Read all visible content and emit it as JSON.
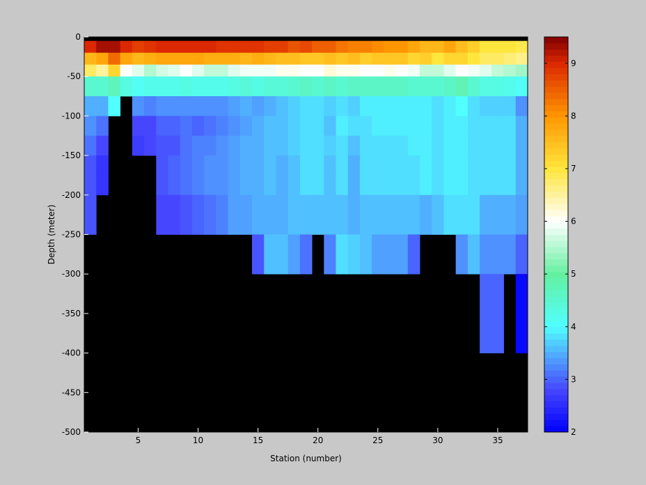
{
  "chart_data": {
    "type": "heatmap",
    "xlabel": "Station (number)",
    "ylabel": "Depth (meter)",
    "xlim": [
      0.5,
      37.5
    ],
    "ylim": [
      -500,
      0
    ],
    "xticks": [
      5,
      10,
      15,
      20,
      25,
      30,
      35
    ],
    "yticks": [
      0,
      -50,
      -100,
      -150,
      -200,
      -250,
      -300,
      -350,
      -400,
      -450,
      -500
    ],
    "colorbar": {
      "range": [
        2,
        9.5
      ],
      "ticks": [
        2,
        3,
        4,
        5,
        6,
        7,
        8,
        9
      ],
      "colormap": "jet-like blue-cyan-green-white-yellow-red"
    },
    "no_data_color": "#000000",
    "depth_bins": [
      [
        0,
        -5
      ],
      [
        -5,
        -20
      ],
      [
        -20,
        -35
      ],
      [
        -35,
        -50
      ],
      [
        -50,
        -75
      ],
      [
        -75,
        -100
      ],
      [
        -100,
        -125
      ],
      [
        -125,
        -150
      ],
      [
        -150,
        -175
      ],
      [
        -175,
        -200
      ],
      [
        -200,
        -250
      ],
      [
        -250,
        -300
      ],
      [
        -300,
        -400
      ]
    ],
    "rows": [
      [
        null,
        null,
        null,
        null,
        null,
        null,
        null,
        null,
        null,
        null,
        null,
        null,
        null,
        null,
        null,
        null,
        null,
        null,
        null,
        null,
        null,
        null,
        null,
        null,
        null,
        null,
        null,
        null,
        null,
        null,
        null,
        null,
        null,
        null,
        null,
        null,
        null
      ],
      [
        9.0,
        9.3,
        9.3,
        9.0,
        8.8,
        8.9,
        9.0,
        9.0,
        9.0,
        9.0,
        9.0,
        8.9,
        8.9,
        8.9,
        8.9,
        8.8,
        8.8,
        8.6,
        8.7,
        8.5,
        8.5,
        8.3,
        8.2,
        8.2,
        8.1,
        8.0,
        8.0,
        7.8,
        7.6,
        7.6,
        7.8,
        7.5,
        7.3,
        7.0,
        7.0,
        7.0,
        6.9
      ],
      [
        7.6,
        7.8,
        8.4,
        7.8,
        7.6,
        7.7,
        7.8,
        7.8,
        7.8,
        7.8,
        7.7,
        7.7,
        7.7,
        7.6,
        7.7,
        7.6,
        7.5,
        7.5,
        7.4,
        7.4,
        7.5,
        7.4,
        7.5,
        7.3,
        7.4,
        7.4,
        7.4,
        7.2,
        7.3,
        7.0,
        7.2,
        7.2,
        7.0,
        6.8,
        6.8,
        6.7,
        6.6
      ],
      [
        6.8,
        6.5,
        7.2,
        6.0,
        5.8,
        5.5,
        5.7,
        5.8,
        6.0,
        5.8,
        5.6,
        5.6,
        5.8,
        5.9,
        5.9,
        5.9,
        6.1,
        6.1,
        6.0,
        6.0,
        6.2,
        6.1,
        6.1,
        6.0,
        6.0,
        6.1,
        6.0,
        5.9,
        5.6,
        5.6,
        5.8,
        6.0,
        5.9,
        5.8,
        5.6,
        5.5,
        5.4
      ],
      [
        4.5,
        4.5,
        4.7,
        4.3,
        4.1,
        4.2,
        4.2,
        4.2,
        4.3,
        4.2,
        4.2,
        4.2,
        4.3,
        4.4,
        4.3,
        4.4,
        4.4,
        4.5,
        4.6,
        4.5,
        4.6,
        4.5,
        4.6,
        4.6,
        4.6,
        4.6,
        4.6,
        4.5,
        4.5,
        4.5,
        4.6,
        4.8,
        4.5,
        4.3,
        4.3,
        4.2,
        4.1
      ],
      [
        3.5,
        3.5,
        4.0,
        null,
        3.3,
        3.2,
        3.3,
        3.3,
        3.3,
        3.3,
        3.3,
        3.3,
        3.4,
        3.5,
        3.4,
        3.5,
        3.6,
        3.7,
        3.8,
        3.8,
        3.7,
        3.8,
        3.7,
        3.9,
        3.9,
        3.9,
        3.9,
        3.9,
        3.9,
        3.8,
        3.9,
        4.0,
        3.8,
        3.7,
        3.7,
        3.7,
        3.3
      ],
      [
        3.3,
        3.1,
        null,
        null,
        2.8,
        2.8,
        3.0,
        3.0,
        3.1,
        3.0,
        3.1,
        3.2,
        3.3,
        3.4,
        3.5,
        3.6,
        3.6,
        3.7,
        3.8,
        3.8,
        3.6,
        3.9,
        3.8,
        3.8,
        3.9,
        3.9,
        3.9,
        3.9,
        3.9,
        3.8,
        3.9,
        3.9,
        3.8,
        3.8,
        3.8,
        3.8,
        3.5
      ],
      [
        3.1,
        2.8,
        null,
        null,
        2.7,
        2.8,
        2.9,
        2.9,
        3.1,
        3.2,
        3.2,
        3.3,
        3.4,
        3.5,
        3.5,
        3.6,
        3.6,
        3.7,
        3.8,
        3.8,
        3.7,
        3.8,
        3.6,
        3.8,
        3.8,
        3.8,
        3.8,
        3.9,
        3.9,
        3.8,
        3.9,
        3.9,
        3.8,
        3.8,
        3.8,
        3.8,
        3.5
      ],
      [
        2.9,
        2.6,
        null,
        null,
        null,
        null,
        2.9,
        3.0,
        3.1,
        3.2,
        3.3,
        3.3,
        3.4,
        3.5,
        3.5,
        3.6,
        3.5,
        3.6,
        3.8,
        3.8,
        3.6,
        3.8,
        3.5,
        3.8,
        3.8,
        3.8,
        3.8,
        3.8,
        3.9,
        3.8,
        3.9,
        3.9,
        3.8,
        3.8,
        3.8,
        3.8,
        3.5
      ],
      [
        2.9,
        2.6,
        null,
        null,
        null,
        null,
        2.9,
        3.0,
        3.1,
        3.2,
        3.3,
        3.3,
        3.4,
        3.5,
        3.5,
        3.6,
        3.5,
        3.6,
        3.8,
        3.8,
        3.6,
        3.8,
        3.5,
        3.8,
        3.8,
        3.8,
        3.8,
        3.8,
        3.9,
        3.8,
        3.9,
        3.9,
        3.8,
        3.8,
        3.8,
        3.8,
        3.5
      ],
      [
        2.9,
        null,
        null,
        null,
        null,
        null,
        2.8,
        2.8,
        2.9,
        3.0,
        3.1,
        3.2,
        3.4,
        3.4,
        3.5,
        3.5,
        3.5,
        3.6,
        3.6,
        3.6,
        3.6,
        3.6,
        3.5,
        3.6,
        3.6,
        3.6,
        3.6,
        3.6,
        3.5,
        3.6,
        3.8,
        3.8,
        3.8,
        3.5,
        3.5,
        3.5,
        3.4
      ],
      [
        null,
        null,
        null,
        null,
        null,
        null,
        null,
        null,
        null,
        null,
        null,
        null,
        null,
        null,
        2.9,
        3.6,
        3.6,
        3.4,
        3.1,
        null,
        3.2,
        3.8,
        3.7,
        3.6,
        3.4,
        3.4,
        3.4,
        3.0,
        null,
        null,
        null,
        3.3,
        3.6,
        3.3,
        3.3,
        3.3,
        3.0
      ],
      [
        null,
        null,
        null,
        null,
        null,
        null,
        null,
        null,
        null,
        null,
        null,
        null,
        null,
        null,
        null,
        null,
        null,
        null,
        null,
        null,
        null,
        null,
        null,
        null,
        null,
        null,
        null,
        null,
        null,
        null,
        null,
        null,
        null,
        3.0,
        3.0,
        null,
        2.1
      ]
    ]
  }
}
